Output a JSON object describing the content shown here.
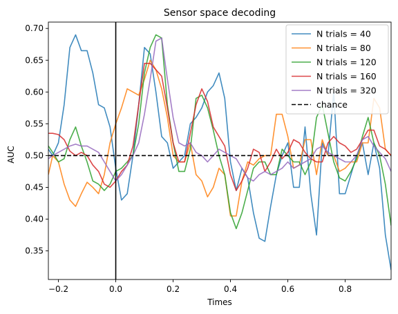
{
  "chart_data": {
    "type": "line",
    "title": "Sensor space decoding",
    "xlabel": "Times",
    "ylabel": "AUC",
    "xlim": [
      -0.235,
      0.96
    ],
    "ylim": [
      0.305,
      0.71
    ],
    "xticks": [
      -0.2,
      0.0,
      0.2,
      0.4,
      0.6,
      0.8
    ],
    "xtick_labels": [
      "−0.2",
      "0.0",
      "0.2",
      "0.4",
      "0.6",
      "0.8"
    ],
    "yticks": [
      0.35,
      0.4,
      0.45,
      0.5,
      0.55,
      0.6,
      0.65,
      0.7
    ],
    "ytick_labels": [
      "0.35",
      "0.40",
      "0.45",
      "0.50",
      "0.55",
      "0.60",
      "0.65",
      "0.70"
    ],
    "grid": false,
    "legend_position": "top-right",
    "x": [
      -0.235,
      -0.22,
      -0.2,
      -0.18,
      -0.16,
      -0.14,
      -0.12,
      -0.1,
      -0.08,
      -0.06,
      -0.04,
      -0.02,
      0.0,
      0.02,
      0.04,
      0.06,
      0.08,
      0.1,
      0.12,
      0.14,
      0.16,
      0.18,
      0.2,
      0.22,
      0.24,
      0.26,
      0.28,
      0.3,
      0.32,
      0.34,
      0.36,
      0.38,
      0.4,
      0.42,
      0.44,
      0.46,
      0.48,
      0.5,
      0.52,
      0.54,
      0.56,
      0.58,
      0.6,
      0.62,
      0.64,
      0.66,
      0.68,
      0.7,
      0.72,
      0.74,
      0.76,
      0.78,
      0.8,
      0.82,
      0.84,
      0.86,
      0.88,
      0.9,
      0.92,
      0.94,
      0.96
    ],
    "series": [
      {
        "name": "N trials = 40",
        "color": "#1f77b4",
        "values": [
          0.51,
          0.5,
          0.52,
          0.58,
          0.67,
          0.69,
          0.665,
          0.665,
          0.63,
          0.58,
          0.575,
          0.545,
          0.48,
          0.43,
          0.44,
          0.5,
          0.58,
          0.67,
          0.66,
          0.6,
          0.53,
          0.52,
          0.48,
          0.49,
          0.5,
          0.55,
          0.56,
          0.575,
          0.6,
          0.61,
          0.63,
          0.59,
          0.49,
          0.445,
          0.48,
          0.465,
          0.41,
          0.37,
          0.365,
          0.42,
          0.47,
          0.5,
          0.52,
          0.45,
          0.45,
          0.545,
          0.44,
          0.375,
          0.52,
          0.5,
          0.6,
          0.44,
          0.44,
          0.47,
          0.5,
          0.52,
          0.47,
          0.52,
          0.48,
          0.375,
          0.32
        ]
      },
      {
        "name": "N trials = 80",
        "color": "#ff7f0e",
        "values": [
          0.47,
          0.5,
          0.49,
          0.455,
          0.43,
          0.42,
          0.44,
          0.458,
          0.45,
          0.44,
          0.47,
          0.52,
          0.55,
          0.575,
          0.605,
          0.6,
          0.595,
          0.62,
          0.65,
          0.635,
          0.605,
          0.56,
          0.5,
          0.49,
          0.49,
          0.52,
          0.47,
          0.46,
          0.435,
          0.45,
          0.48,
          0.47,
          0.405,
          0.405,
          0.46,
          0.49,
          0.485,
          0.495,
          0.5,
          0.5,
          0.565,
          0.565,
          0.53,
          0.48,
          0.485,
          0.525,
          0.525,
          0.47,
          0.525,
          0.5,
          0.5,
          0.475,
          0.48,
          0.49,
          0.49,
          0.52,
          0.52,
          0.59,
          0.575,
          0.51,
          0.5
        ]
      },
      {
        "name": "N trials = 120",
        "color": "#2ca02c",
        "values": [
          0.515,
          0.505,
          0.49,
          0.495,
          0.525,
          0.545,
          0.515,
          0.49,
          0.46,
          0.455,
          0.445,
          0.455,
          0.475,
          0.48,
          0.49,
          0.5,
          0.55,
          0.63,
          0.67,
          0.69,
          0.685,
          0.58,
          0.52,
          0.475,
          0.475,
          0.51,
          0.59,
          0.595,
          0.575,
          0.54,
          0.5,
          0.47,
          0.41,
          0.385,
          0.41,
          0.445,
          0.48,
          0.49,
          0.49,
          0.47,
          0.47,
          0.51,
          0.5,
          0.49,
          0.49,
          0.47,
          0.49,
          0.56,
          0.58,
          0.535,
          0.49,
          0.465,
          0.46,
          0.475,
          0.495,
          0.53,
          0.56,
          0.52,
          0.5,
          0.455,
          0.39
        ]
      },
      {
        "name": "N trials = 160",
        "color": "#d62728",
        "values": [
          0.535,
          0.535,
          0.533,
          0.525,
          0.507,
          0.5,
          0.505,
          0.5,
          0.485,
          0.475,
          0.455,
          0.45,
          0.46,
          0.475,
          0.485,
          0.515,
          0.58,
          0.645,
          0.645,
          0.635,
          0.625,
          0.575,
          0.52,
          0.49,
          0.49,
          0.535,
          0.58,
          0.605,
          0.585,
          0.545,
          0.53,
          0.515,
          0.47,
          0.445,
          0.46,
          0.48,
          0.51,
          0.505,
          0.475,
          0.49,
          0.51,
          0.495,
          0.505,
          0.525,
          0.52,
          0.505,
          0.495,
          0.49,
          0.49,
          0.52,
          0.53,
          0.52,
          0.515,
          0.505,
          0.51,
          0.525,
          0.54,
          0.54,
          0.515,
          0.51,
          0.5
        ]
      },
      {
        "name": "N trials = 320",
        "color": "#9467bd",
        "values": [
          0.495,
          0.5,
          0.505,
          0.51,
          0.515,
          0.518,
          0.515,
          0.515,
          0.51,
          0.505,
          0.49,
          0.475,
          0.46,
          0.47,
          0.485,
          0.5,
          0.52,
          0.565,
          0.62,
          0.68,
          0.685,
          0.62,
          0.56,
          0.52,
          0.515,
          0.52,
          0.505,
          0.5,
          0.49,
          0.5,
          0.51,
          0.505,
          0.5,
          0.495,
          0.48,
          0.465,
          0.46,
          0.47,
          0.475,
          0.47,
          0.475,
          0.48,
          0.49,
          0.48,
          0.485,
          0.49,
          0.495,
          0.51,
          0.515,
          0.505,
          0.5,
          0.495,
          0.49,
          0.49,
          0.5,
          0.525,
          0.53,
          0.515,
          0.505,
          0.495,
          0.475
        ]
      }
    ],
    "reference_line": {
      "name": "chance",
      "y": 0.5,
      "color": "#000000",
      "style": "dashed"
    },
    "vertical_line": {
      "x": 0.0,
      "color": "#000000"
    }
  }
}
